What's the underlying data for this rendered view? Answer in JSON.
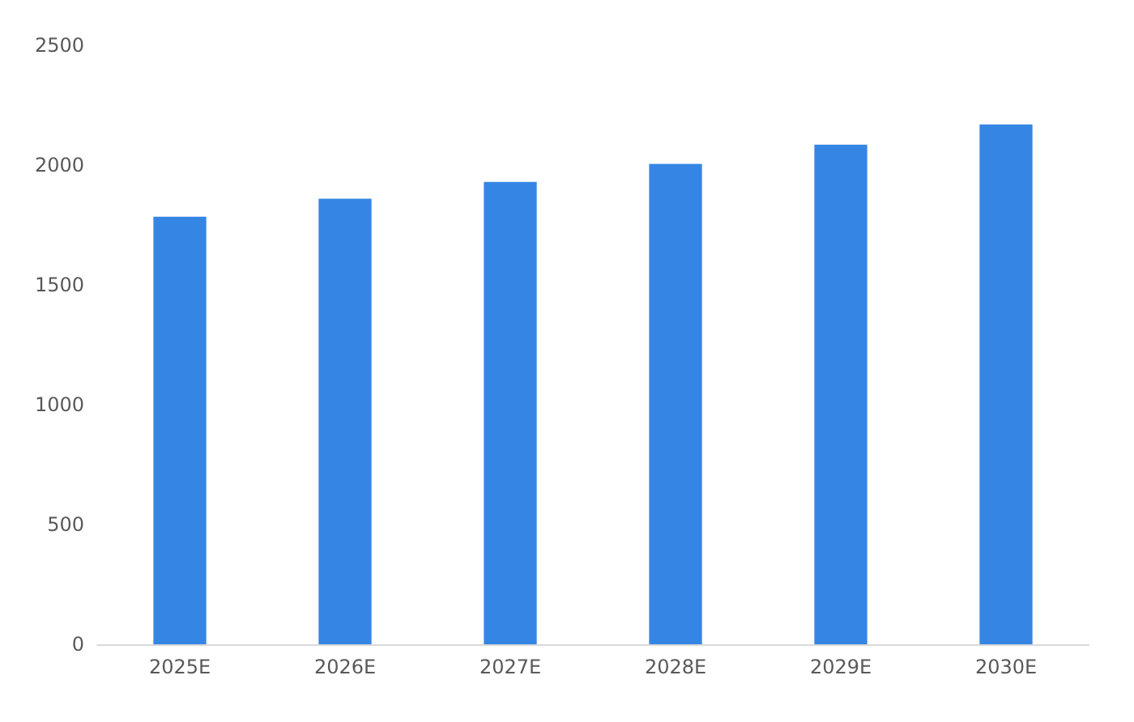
{
  "chart_data": {
    "type": "bar",
    "categories": [
      "2025E",
      "2026E",
      "2027E",
      "2028E",
      "2029E",
      "2030E"
    ],
    "values": [
      1785,
      1860,
      1930,
      2005,
      2085,
      2170
    ],
    "color": "#3585e4",
    "ylim": [
      0,
      2500
    ],
    "yticks": [
      0,
      500,
      1000,
      1500,
      2000,
      2500
    ],
    "grid": false
  }
}
